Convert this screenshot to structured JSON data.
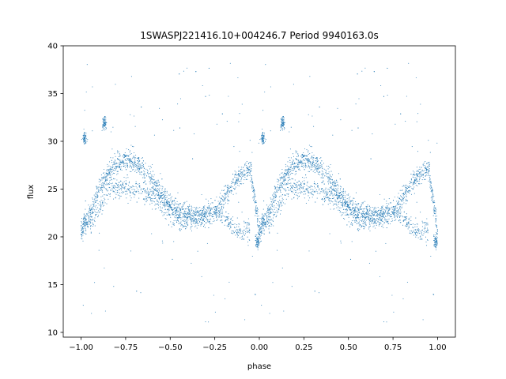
{
  "chart_data": {
    "type": "scatter",
    "title": "1SWASPJ221416.10+004246.7 Period 9940163.0s",
    "xlabel": "phase",
    "ylabel": "flux",
    "xlim": [
      -1.1,
      1.1
    ],
    "ylim": [
      9.5,
      40
    ],
    "xticks": [
      -1.0,
      -0.75,
      -0.5,
      -0.25,
      0.0,
      0.25,
      0.5,
      0.75,
      1.0
    ],
    "xtick_labels": [
      "−1.00",
      "−0.75",
      "−0.50",
      "−0.25",
      "0.00",
      "0.25",
      "0.50",
      "0.75",
      "1.00"
    ],
    "yticks": [
      10,
      15,
      20,
      25,
      30,
      35,
      40
    ],
    "ytick_labels": [
      "10",
      "15",
      "20",
      "25",
      "30",
      "35",
      "40"
    ],
    "grid": false,
    "marker_color": "#1f77b4",
    "series": [
      {
        "name": "",
        "trend_main": {
          "phase": [
            0.0,
            0.05,
            0.1,
            0.15,
            0.2,
            0.25,
            0.3,
            0.35,
            0.4,
            0.45,
            0.5,
            0.55,
            0.6,
            0.65,
            0.7,
            0.75,
            0.8,
            0.85,
            0.9,
            0.95,
            1.0
          ],
          "flux": [
            20.5,
            22.5,
            25.0,
            26.5,
            27.5,
            28.2,
            27.8,
            27.0,
            26.0,
            24.5,
            23.2,
            22.8,
            22.5,
            22.2,
            22.0,
            22.5,
            24.0,
            25.5,
            26.5,
            27.2,
            20.5
          ]
        },
        "trend_secondary": {
          "phase": [
            0.05,
            0.1,
            0.15,
            0.2,
            0.25,
            0.3,
            0.35,
            0.4,
            0.45,
            0.5,
            0.55,
            0.6,
            0.65,
            0.7,
            0.75,
            0.8,
            0.85,
            0.9,
            0.95
          ],
          "flux": [
            21.0,
            23.0,
            24.8,
            25.0,
            25.2,
            25.0,
            24.8,
            24.2,
            23.5,
            22.5,
            21.8,
            21.5,
            22.0,
            22.8,
            23.0,
            22.0,
            21.0,
            20.5,
            20.8
          ]
        },
        "features": [
          {
            "phase": 0.02,
            "flux": 30.3,
            "note": "cluster"
          },
          {
            "phase": 0.13,
            "flux": 32.0,
            "note": "peak"
          },
          {
            "phase": 0.99,
            "flux": 19.5,
            "note": "cluster"
          }
        ]
      }
    ],
    "outlier_range": [
      11,
      38.5
    ]
  }
}
